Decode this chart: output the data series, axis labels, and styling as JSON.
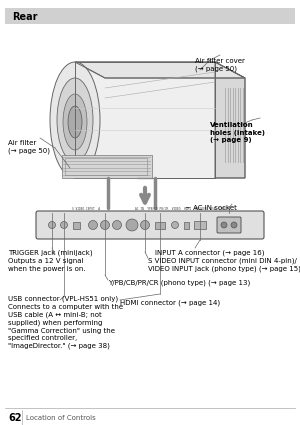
{
  "bg_color": "#ffffff",
  "title": "Rear",
  "title_bg": "#d0d0d0",
  "page_num": "62",
  "page_label": "Location of Controls",
  "proj_body_color": "#f0f0f0",
  "proj_edge_color": "#666666",
  "panel_color": "#d8d8d8",
  "panel_edge": "#555555",
  "line_color": "#666666",
  "text_color": "#000000"
}
